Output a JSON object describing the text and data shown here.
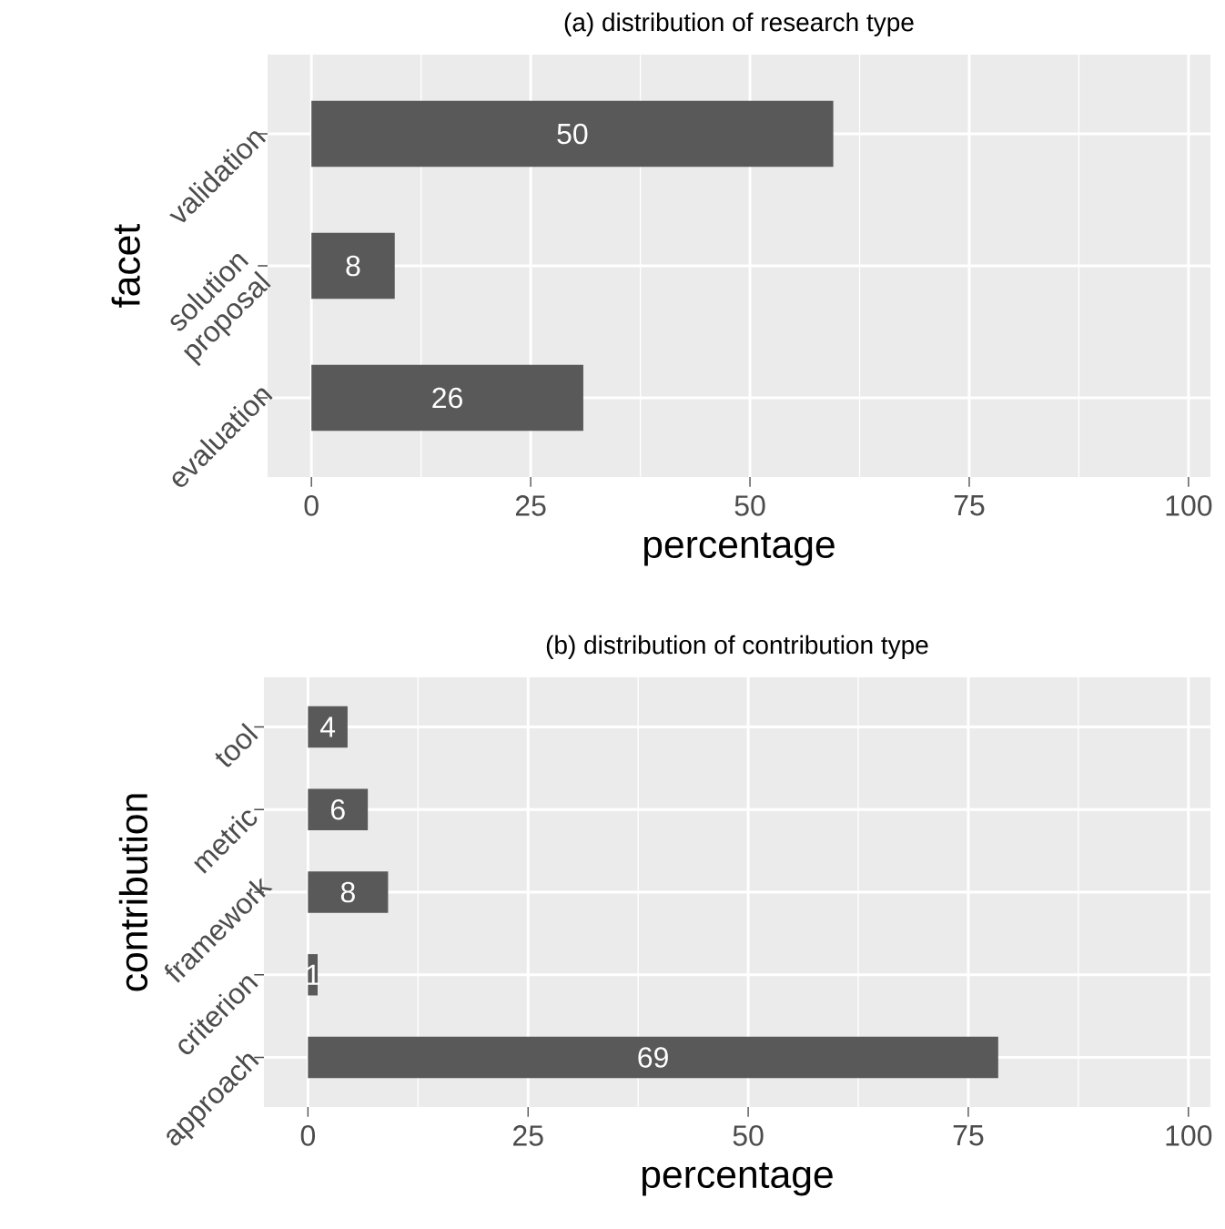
{
  "chart_data": [
    {
      "type": "bar",
      "orientation": "horizontal",
      "title": "(a) distribution of research type",
      "xlabel": "percentage",
      "ylabel": "facet",
      "categories": [
        "validation",
        "solution proposal",
        "evaluation"
      ],
      "values": [
        59.5,
        9.5,
        31
      ],
      "color": "#595959",
      "annotations": [
        "50",
        "8",
        "26"
      ],
      "xlim": [
        -5,
        102.5
      ],
      "xticks": [
        0,
        25,
        50,
        75,
        100
      ],
      "grid": true
    },
    {
      "type": "bar",
      "orientation": "horizontal",
      "title": "(b) distribution of contribution type",
      "xlabel": "percentage",
      "ylabel": "contribution",
      "categories": [
        "tool",
        "metric",
        "framework",
        "criterion",
        "approach"
      ],
      "values": [
        4.5,
        6.8,
        9.1,
        1.1,
        78.4
      ],
      "color": "#595959",
      "annotations": [
        "4",
        "6",
        "8",
        "1",
        "69"
      ],
      "xlim": [
        -5,
        102.5
      ],
      "xticks": [
        0,
        25,
        50,
        75,
        100
      ],
      "grid": true
    }
  ]
}
